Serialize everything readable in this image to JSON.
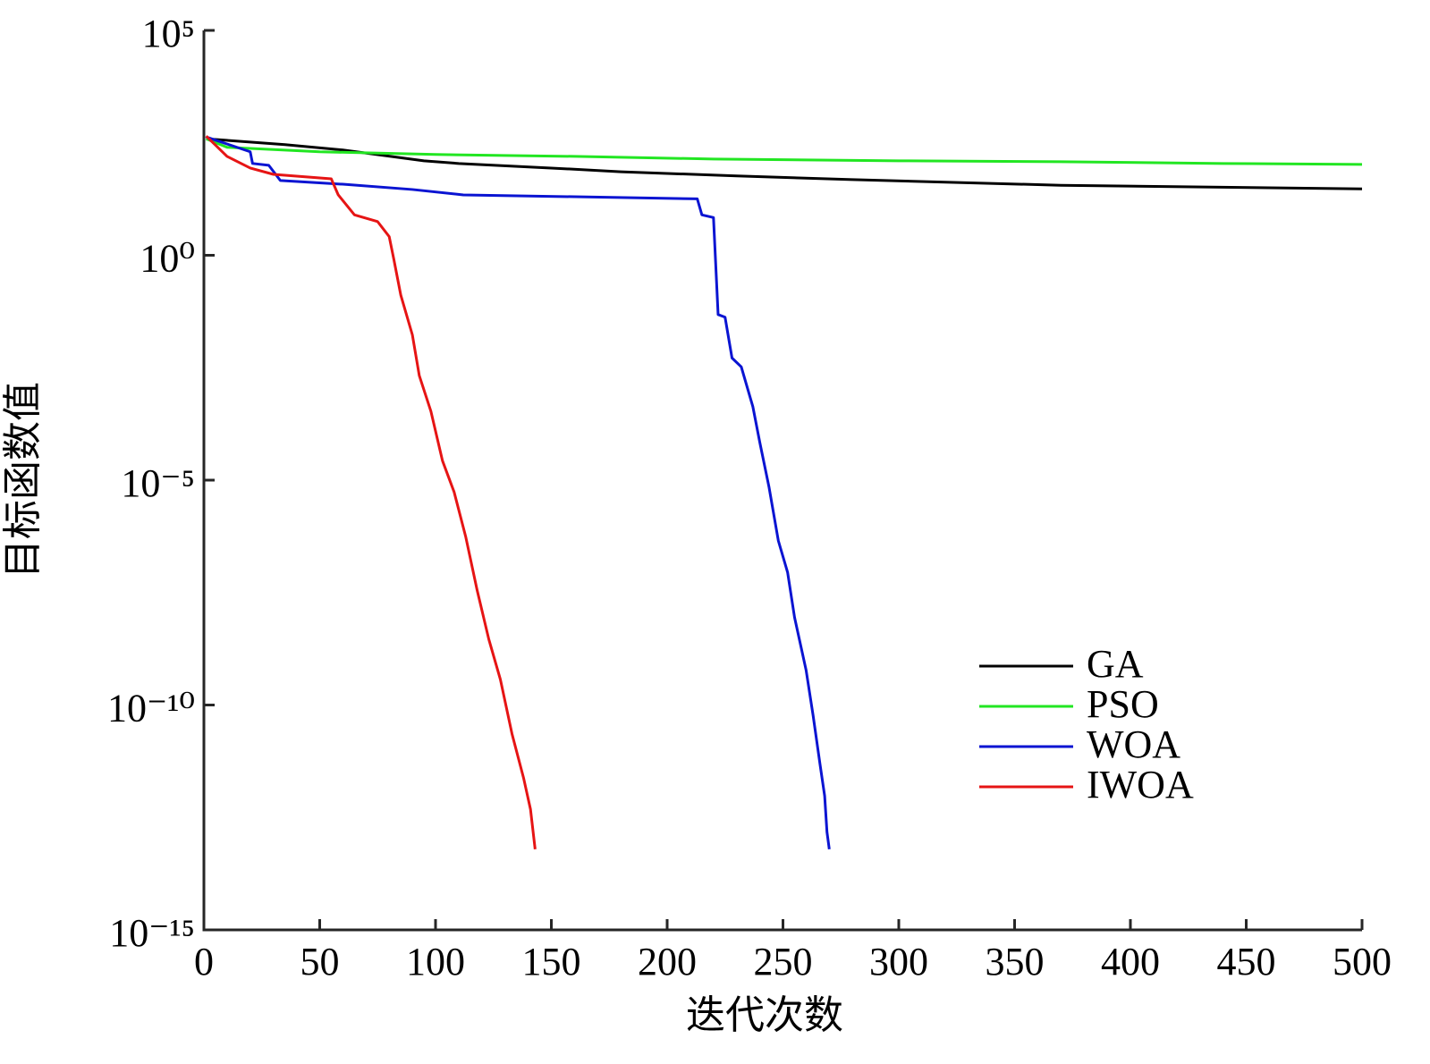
{
  "chart_data": {
    "type": "line",
    "xlabel": "迭代次数",
    "ylabel": "目标函数值",
    "log_y": true,
    "legend": "lower right",
    "xlim": [
      0,
      500
    ],
    "xticks": [
      0,
      50,
      100,
      150,
      200,
      250,
      300,
      350,
      400,
      450,
      500
    ],
    "ylim": [
      1e-15,
      100000
    ],
    "yticks": [
      {
        "value": 1e-15,
        "label": "10⁻¹⁵"
      },
      {
        "value": 1e-10,
        "label": "10⁻¹⁰"
      },
      {
        "value": 1e-05,
        "label": "10⁻⁵"
      },
      {
        "value": 1,
        "label": "10⁰"
      },
      {
        "value": 100000,
        "label": "10⁵"
      }
    ],
    "series": [
      {
        "name": "GA",
        "color": "#000000",
        "x": [
          1,
          35,
          60,
          95,
          110,
          150,
          180,
          230,
          280,
          370,
          500
        ],
        "values": [
          389,
          288,
          219,
          126,
          110,
          87,
          72,
          58,
          48,
          36,
          30
        ]
      },
      {
        "name": "PSO",
        "color": "#22e622",
        "x": [
          1,
          10,
          50,
          100,
          160,
          220,
          300,
          370,
          440,
          500
        ],
        "values": [
          389,
          251,
          200,
          174,
          158,
          138,
          126,
          120,
          110,
          105
        ]
      },
      {
        "name": "WOA",
        "color": "#0a14d2",
        "x": [
          1,
          20,
          21,
          28,
          33,
          60,
          90,
          112,
          213,
          215,
          220,
          222,
          225,
          228,
          232,
          237,
          240,
          244,
          248,
          252,
          255,
          260,
          263,
          266,
          268,
          269,
          270
        ],
        "values": [
          427,
          200,
          110,
          100,
          46,
          38,
          29,
          22,
          18,
          7.9,
          6.9,
          0.048,
          0.042,
          0.0052,
          0.0033,
          0.00043,
          6.9e-05,
          6.9e-06,
          4.5e-07,
          8.9e-08,
          8.9e-09,
          5.9e-10,
          5.9e-11,
          4.8e-12,
          9.5e-13,
          1.5e-13,
          6.2e-14
        ]
      },
      {
        "name": "IWOA",
        "color": "#e61414",
        "x": [
          1,
          10,
          20,
          30,
          55,
          58,
          65,
          75,
          80,
          82,
          85,
          90,
          93,
          98,
          103,
          108,
          113,
          118,
          123,
          128,
          133,
          138,
          141,
          143
        ],
        "values": [
          447,
          158,
          87,
          63,
          50,
          22,
          7.9,
          5.6,
          2.6,
          0.81,
          0.13,
          0.017,
          0.0021,
          0.00034,
          2.7e-05,
          5.5e-06,
          5.6e-07,
          3.5e-08,
          2.9e-09,
          3.7e-10,
          2.3e-11,
          2.4e-12,
          4.8e-13,
          6.2e-14
        ]
      }
    ]
  }
}
